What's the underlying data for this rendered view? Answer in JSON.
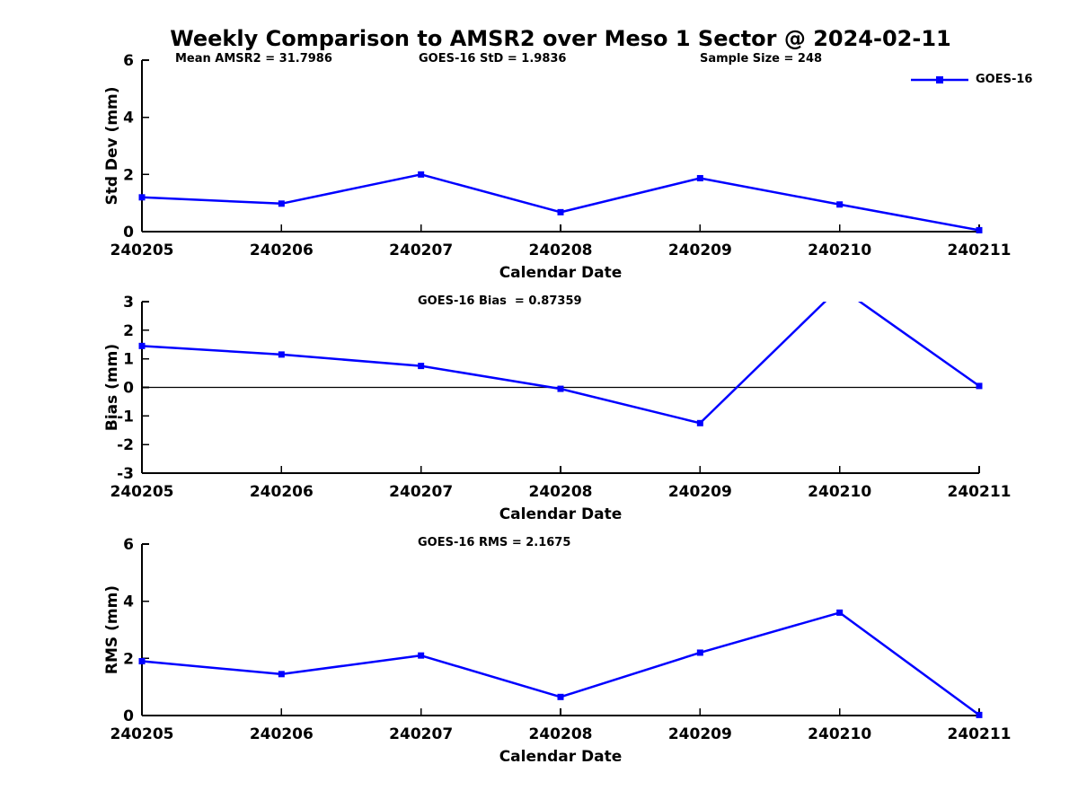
{
  "title": "Weekly Comparison to AMSR2 over Meso 1 Sector @ 2024-02-11",
  "header_stats": [
    "Mean AMSR2 = 31.7986",
    "GOES-16 StD = 1.9836",
    "Sample Size = 248"
  ],
  "legend": {
    "label": "GOES-16",
    "position": "top-right"
  },
  "colors": {
    "line": "#0000FF",
    "axis": "#000000",
    "background": "#FFFFFF",
    "text": "#000000"
  },
  "chart_data": [
    {
      "type": "line",
      "title": "",
      "xlabel": "Calendar Date",
      "ylabel": "Std Dev (mm)",
      "ylim": [
        0,
        6
      ],
      "yticks": [
        0,
        2,
        4,
        6
      ],
      "grid": false,
      "zero_line": false,
      "legend_position": "top-right",
      "categories": [
        "240205",
        "240206",
        "240207",
        "240208",
        "240209",
        "240210",
        "240211"
      ],
      "series": [
        {
          "name": "GOES-16",
          "marker": "square",
          "values": [
            1.2,
            0.98,
            2.0,
            0.68,
            1.87,
            0.95,
            0.05
          ]
        }
      ]
    },
    {
      "type": "line",
      "title": "GOES-16 Bias  = 0.87359",
      "xlabel": "Calendar Date",
      "ylabel": "Bias (mm)",
      "ylim": [
        -3,
        3
      ],
      "yticks": [
        -3,
        -2,
        -1,
        0,
        1,
        2,
        3
      ],
      "grid": false,
      "zero_line": true,
      "clipped_points": [
        "240210 value exceeds +3 and is clipped at axis top"
      ],
      "categories": [
        "240205",
        "240206",
        "240207",
        "240208",
        "240209",
        "240210",
        "240211"
      ],
      "series": [
        {
          "name": "GOES-16",
          "marker": "square",
          "values": [
            1.45,
            1.15,
            0.75,
            -0.05,
            -1.25,
            3.5,
            0.05
          ]
        }
      ]
    },
    {
      "type": "line",
      "title": "GOES-16 RMS = 2.1675",
      "xlabel": "Calendar Date",
      "ylabel": "RMS (mm)",
      "ylim": [
        0,
        6
      ],
      "yticks": [
        0,
        2,
        4,
        6
      ],
      "grid": false,
      "zero_line": false,
      "categories": [
        "240205",
        "240206",
        "240207",
        "240208",
        "240209",
        "240210",
        "240211"
      ],
      "series": [
        {
          "name": "GOES-16",
          "marker": "square",
          "values": [
            1.9,
            1.45,
            2.1,
            0.65,
            2.2,
            3.6,
            0.02
          ]
        }
      ]
    }
  ]
}
